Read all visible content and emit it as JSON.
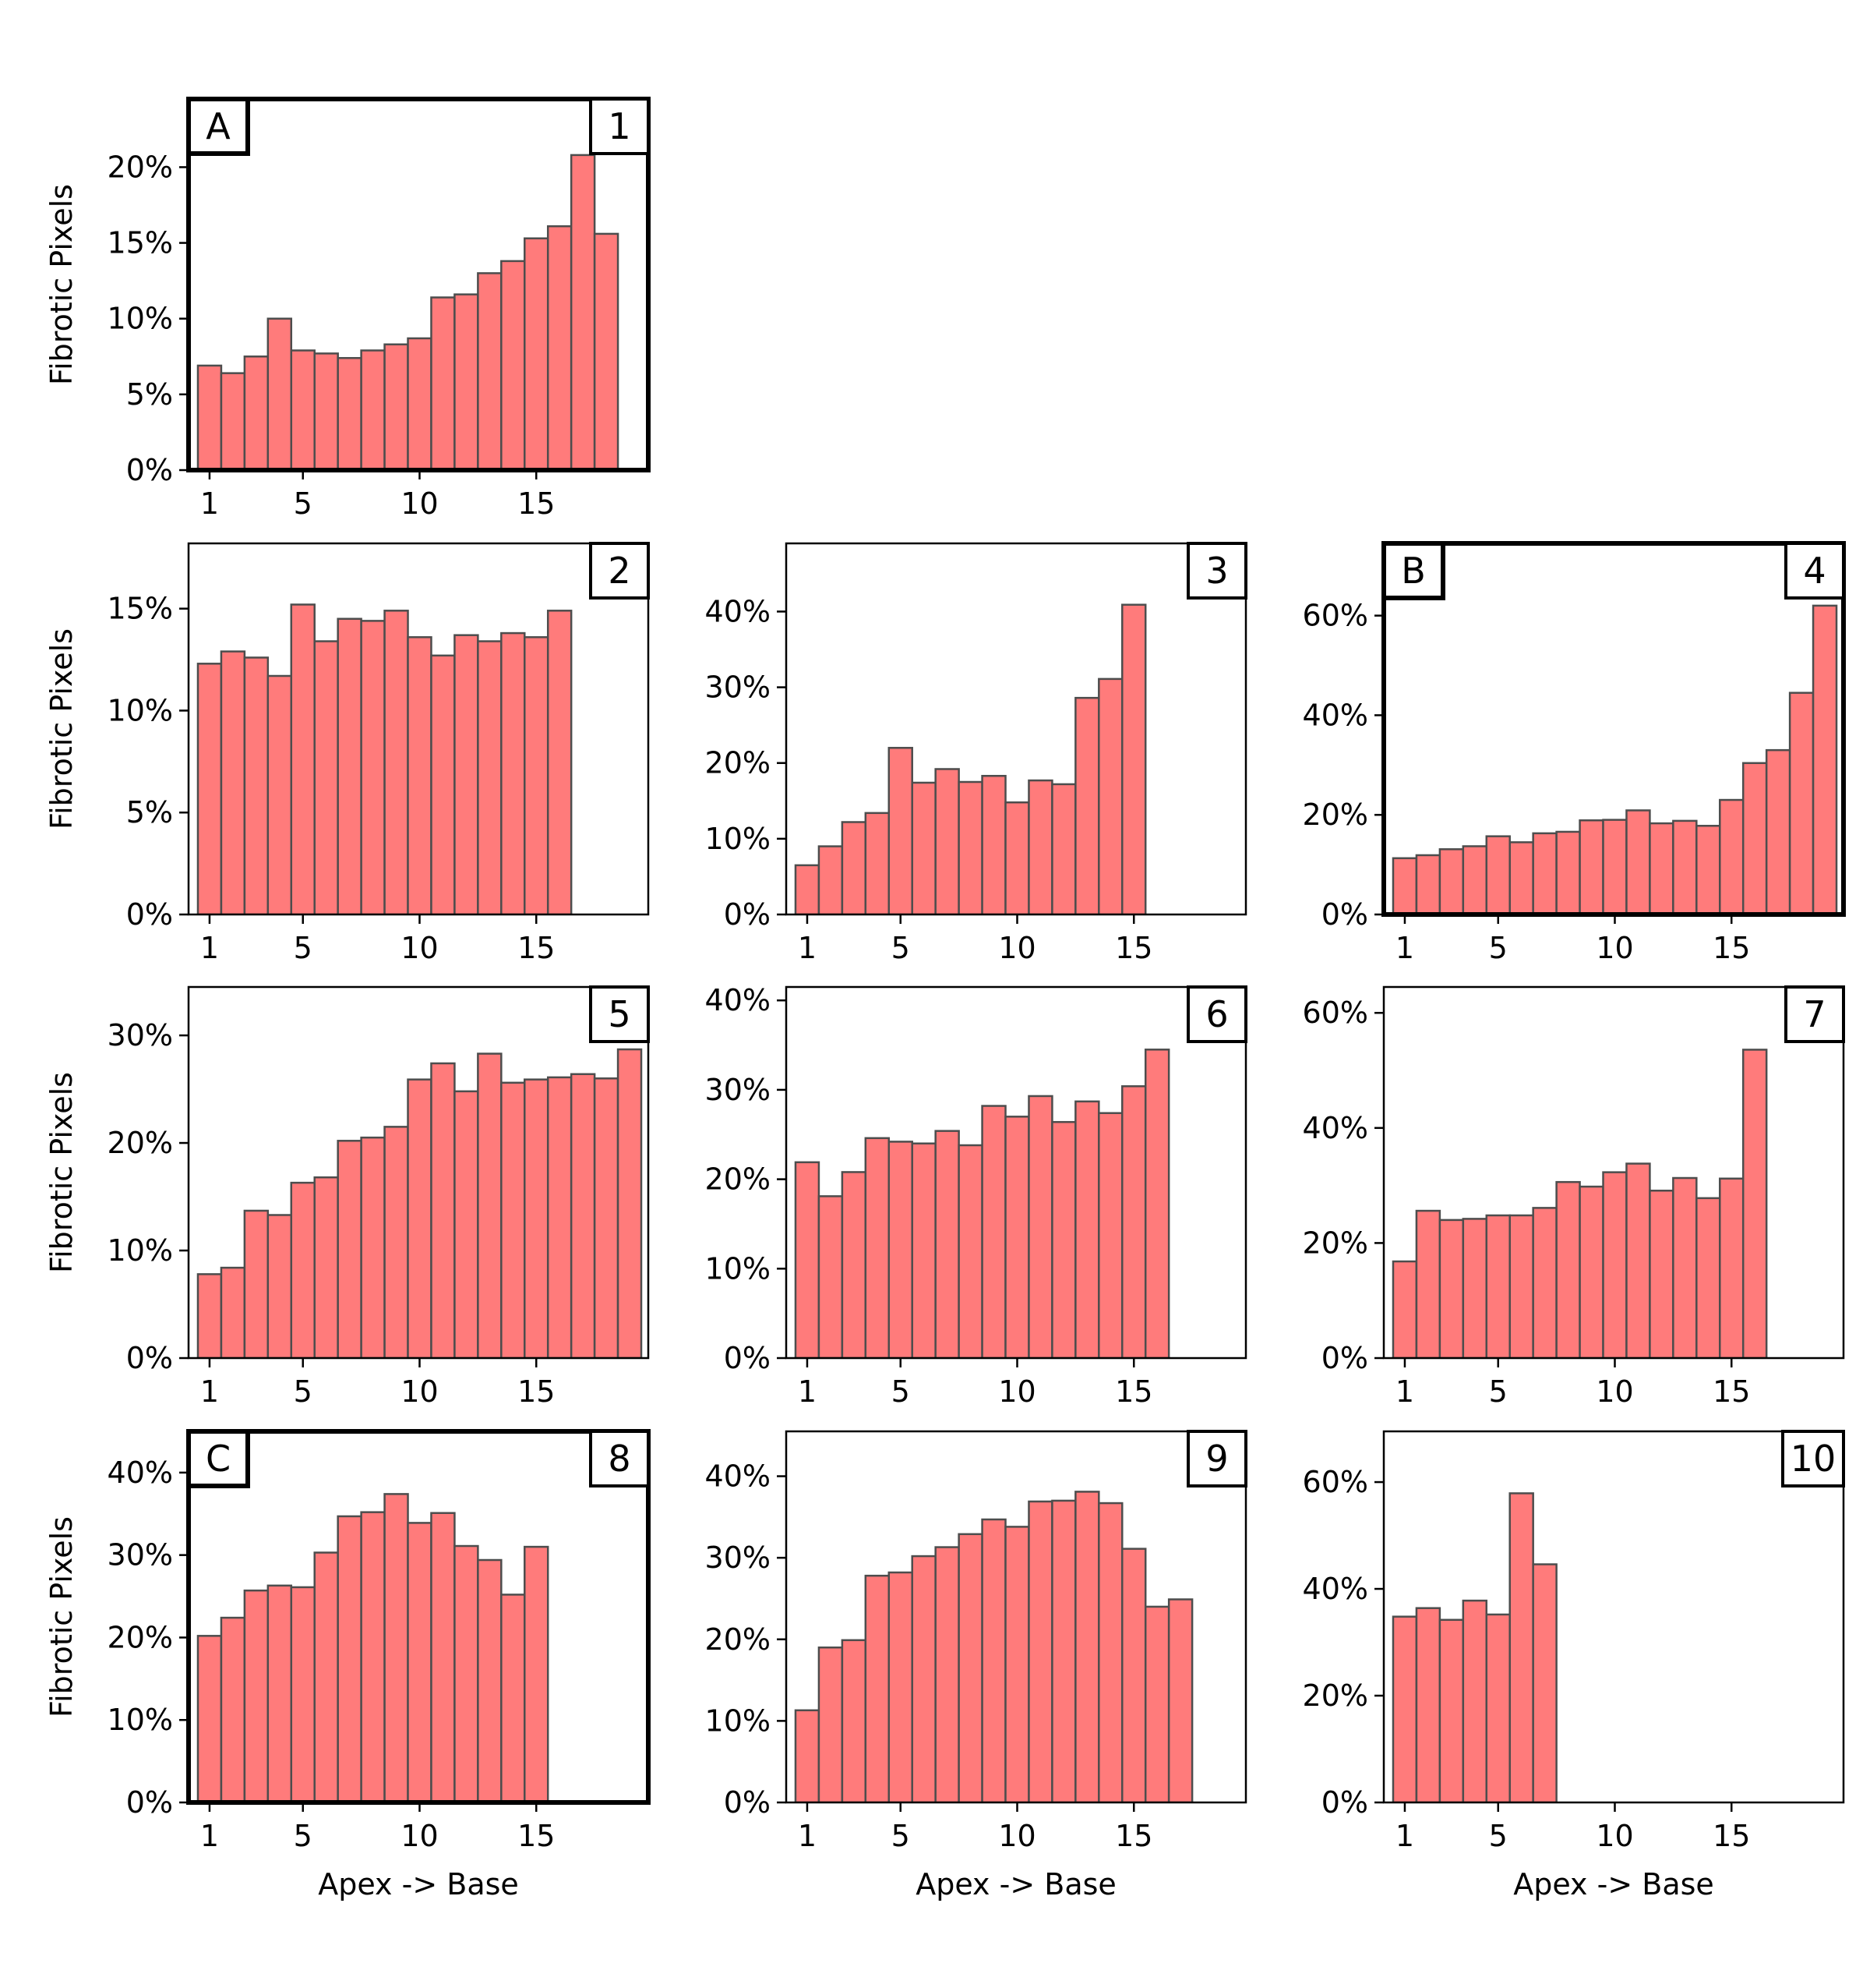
{
  "colors": {
    "bar_fill": "#ff7b7b",
    "bar_edge": "#4d4d4d",
    "frame": "#000000",
    "background": "#ffffff"
  },
  "labels": {
    "ylabel": "Fibrotic Pixels",
    "xlabel": "Apex -> Base"
  },
  "chart_data": [
    {
      "type": "bar",
      "panel": "1",
      "letter": "A",
      "highlight": true,
      "ylabel": "Fibrotic Pixels",
      "xlabel": "",
      "xlim": [
        0.1,
        19.8
      ],
      "ylim": [
        0,
        24.5
      ],
      "yticks": [
        0,
        5,
        10,
        15,
        20
      ],
      "ytick_labels": [
        "0%",
        "5%",
        "10%",
        "15%",
        "20%"
      ],
      "xticks": [
        1,
        5,
        10,
        15
      ],
      "xtick_labels": [
        "1",
        "5",
        "10",
        "15"
      ],
      "x": [
        1,
        2,
        3,
        4,
        5,
        6,
        7,
        8,
        9,
        10,
        11,
        12,
        13,
        14,
        15,
        16,
        17,
        18
      ],
      "values": [
        6.9,
        6.4,
        7.5,
        10.0,
        7.9,
        7.7,
        7.4,
        7.9,
        8.3,
        8.7,
        11.4,
        11.6,
        13.0,
        13.8,
        15.3,
        16.1,
        20.8,
        15.6
      ]
    },
    {
      "type": "bar",
      "panel": "2",
      "letter": "",
      "highlight": false,
      "ylabel": "Fibrotic Pixels",
      "xlabel": "",
      "xlim": [
        0.1,
        19.8
      ],
      "ylim": [
        0,
        18.2
      ],
      "yticks": [
        0,
        5,
        10,
        15
      ],
      "ytick_labels": [
        "0%",
        "5%",
        "10%",
        "15%"
      ],
      "xticks": [
        1,
        5,
        10,
        15
      ],
      "xtick_labels": [
        "1",
        "5",
        "10",
        "15"
      ],
      "x": [
        1,
        2,
        3,
        4,
        5,
        6,
        7,
        8,
        9,
        10,
        11,
        12,
        13,
        14,
        15,
        16
      ],
      "values": [
        12.3,
        12.9,
        12.6,
        11.7,
        15.2,
        13.4,
        14.5,
        14.4,
        14.9,
        13.6,
        12.7,
        13.7,
        13.4,
        13.8,
        13.6,
        14.9
      ]
    },
    {
      "type": "bar",
      "panel": "3",
      "letter": "",
      "highlight": false,
      "ylabel": "",
      "xlabel": "",
      "xlim": [
        0.1,
        19.8
      ],
      "ylim": [
        0,
        49
      ],
      "yticks": [
        0,
        10,
        20,
        30,
        40
      ],
      "ytick_labels": [
        "0%",
        "10%",
        "20%",
        "30%",
        "40%"
      ],
      "xticks": [
        1,
        5,
        10,
        15
      ],
      "xtick_labels": [
        "1",
        "5",
        "10",
        "15"
      ],
      "x": [
        1,
        2,
        3,
        4,
        5,
        6,
        7,
        8,
        9,
        10,
        11,
        12,
        13,
        14,
        15
      ],
      "values": [
        6.5,
        9.0,
        12.2,
        13.4,
        22.0,
        17.4,
        19.2,
        17.5,
        18.3,
        14.8,
        17.7,
        17.2,
        28.6,
        31.1,
        40.9
      ]
    },
    {
      "type": "bar",
      "panel": "4",
      "letter": "B",
      "highlight": true,
      "ylabel": "",
      "xlabel": "",
      "xlim": [
        0.1,
        19.8
      ],
      "ylim": [
        0,
        74.5
      ],
      "yticks": [
        0,
        20,
        40,
        60
      ],
      "ytick_labels": [
        "0%",
        "20%",
        "40%",
        "60%"
      ],
      "xticks": [
        1,
        5,
        10,
        15
      ],
      "xtick_labels": [
        "1",
        "5",
        "10",
        "15"
      ],
      "x": [
        1,
        2,
        3,
        4,
        5,
        6,
        7,
        8,
        9,
        10,
        11,
        12,
        13,
        14,
        15,
        16,
        17,
        18,
        19
      ],
      "values": [
        11.3,
        11.9,
        13.1,
        13.7,
        15.7,
        14.5,
        16.3,
        16.6,
        18.9,
        19.0,
        20.9,
        18.3,
        18.8,
        17.8,
        23.0,
        30.4,
        33.0,
        44.5,
        62.0
      ]
    },
    {
      "type": "bar",
      "panel": "5",
      "letter": "",
      "highlight": false,
      "ylabel": "Fibrotic Pixels",
      "xlabel": "",
      "xlim": [
        0.1,
        19.8
      ],
      "ylim": [
        0,
        34.5
      ],
      "yticks": [
        0,
        10,
        20,
        30
      ],
      "ytick_labels": [
        "0%",
        "10%",
        "20%",
        "30%"
      ],
      "xticks": [
        1,
        5,
        10,
        15
      ],
      "xtick_labels": [
        "1",
        "5",
        "10",
        "15"
      ],
      "x": [
        1,
        2,
        3,
        4,
        5,
        6,
        7,
        8,
        9,
        10,
        11,
        12,
        13,
        14,
        15,
        16,
        17,
        18,
        19
      ],
      "values": [
        7.8,
        8.4,
        13.7,
        13.3,
        16.3,
        16.8,
        20.2,
        20.5,
        21.5,
        25.9,
        27.4,
        24.8,
        28.3,
        25.6,
        25.9,
        26.1,
        26.4,
        26.0,
        28.7
      ]
    },
    {
      "type": "bar",
      "panel": "6",
      "letter": "",
      "highlight": false,
      "ylabel": "",
      "xlabel": "",
      "xlim": [
        0.1,
        19.8
      ],
      "ylim": [
        0,
        41.5
      ],
      "yticks": [
        0,
        10,
        20,
        30,
        40
      ],
      "ytick_labels": [
        "0%",
        "10%",
        "20%",
        "30%",
        "40%"
      ],
      "xticks": [
        1,
        5,
        10,
        15
      ],
      "xtick_labels": [
        "1",
        "5",
        "10",
        "15"
      ],
      "x": [
        1,
        2,
        3,
        4,
        5,
        6,
        7,
        8,
        9,
        10,
        11,
        12,
        13,
        14,
        15,
        16
      ],
      "values": [
        21.9,
        18.1,
        20.8,
        24.6,
        24.2,
        24.0,
        25.4,
        23.8,
        28.2,
        27.0,
        29.3,
        26.4,
        28.7,
        27.4,
        30.4,
        34.5
      ]
    },
    {
      "type": "bar",
      "panel": "7",
      "letter": "",
      "highlight": false,
      "ylabel": "",
      "xlabel": "",
      "xlim": [
        0.1,
        19.8
      ],
      "ylim": [
        0,
        64.5
      ],
      "yticks": [
        0,
        20,
        40,
        60
      ],
      "ytick_labels": [
        "0%",
        "20%",
        "40%",
        "60%"
      ],
      "xticks": [
        1,
        5,
        10,
        15
      ],
      "xtick_labels": [
        "1",
        "5",
        "10",
        "15"
      ],
      "x": [
        1,
        2,
        3,
        4,
        5,
        6,
        7,
        8,
        9,
        10,
        11,
        12,
        13,
        14,
        15,
        16
      ],
      "values": [
        16.8,
        25.6,
        24.0,
        24.2,
        24.8,
        24.8,
        26.1,
        30.6,
        29.8,
        32.3,
        33.8,
        29.1,
        31.3,
        27.8,
        31.2,
        53.6
      ]
    },
    {
      "type": "bar",
      "panel": "8",
      "letter": "C",
      "highlight": true,
      "ylabel": "Fibrotic Pixels",
      "xlabel": "Apex -> Base",
      "xlim": [
        0.1,
        19.8
      ],
      "ylim": [
        0,
        45
      ],
      "yticks": [
        0,
        10,
        20,
        30,
        40
      ],
      "ytick_labels": [
        "0%",
        "10%",
        "20%",
        "30%",
        "40%"
      ],
      "xticks": [
        1,
        5,
        10,
        15
      ],
      "xtick_labels": [
        "1",
        "5",
        "10",
        "15"
      ],
      "x": [
        1,
        2,
        3,
        4,
        5,
        6,
        7,
        8,
        9,
        10,
        11,
        12,
        13,
        14,
        15
      ],
      "values": [
        20.2,
        22.4,
        25.7,
        26.3,
        26.1,
        30.3,
        34.7,
        35.2,
        37.4,
        33.9,
        35.1,
        31.1,
        29.4,
        25.2,
        31.0
      ]
    },
    {
      "type": "bar",
      "panel": "9",
      "letter": "",
      "highlight": false,
      "ylabel": "",
      "xlabel": "Apex -> Base",
      "xlim": [
        0.1,
        19.8
      ],
      "ylim": [
        0,
        45.5
      ],
      "yticks": [
        0,
        10,
        20,
        30,
        40
      ],
      "ytick_labels": [
        "0%",
        "10%",
        "20%",
        "30%",
        "40%"
      ],
      "xticks": [
        1,
        5,
        10,
        15
      ],
      "xtick_labels": [
        "1",
        "5",
        "10",
        "15"
      ],
      "x": [
        1,
        2,
        3,
        4,
        5,
        6,
        7,
        8,
        9,
        10,
        11,
        12,
        13,
        14,
        15,
        16,
        17
      ],
      "values": [
        11.3,
        19.0,
        19.9,
        27.8,
        28.2,
        30.2,
        31.3,
        32.9,
        34.7,
        33.8,
        36.9,
        37.0,
        38.1,
        36.7,
        31.1,
        24.0,
        24.9
      ]
    },
    {
      "type": "bar",
      "panel": "10",
      "letter": "",
      "highlight": false,
      "ylabel": "",
      "xlabel": "Apex -> Base",
      "xlim": [
        0.1,
        19.8
      ],
      "ylim": [
        0,
        69.5
      ],
      "yticks": [
        0,
        20,
        40,
        60
      ],
      "ytick_labels": [
        "0%",
        "20%",
        "40%",
        "60%"
      ],
      "xticks": [
        1,
        5,
        10,
        15
      ],
      "xtick_labels": [
        "1",
        "5",
        "10",
        "15"
      ],
      "x": [
        1,
        2,
        3,
        4,
        5,
        6,
        7
      ],
      "values": [
        34.8,
        36.4,
        34.2,
        37.8,
        35.2,
        57.9,
        44.6
      ]
    }
  ]
}
